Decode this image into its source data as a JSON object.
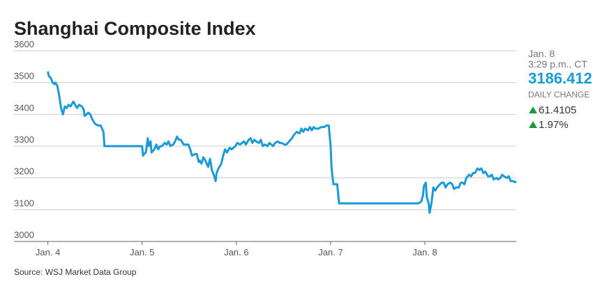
{
  "chart_data": {
    "type": "line",
    "title": "Shanghai Composite Index",
    "source": "Source: WSJ Market Data Group",
    "color": "#1a9ad6",
    "grid": true,
    "xlim": [
      -0.36,
      4.97
    ],
    "xticks": [
      {
        "value": 0,
        "label": "Jan. 4"
      },
      {
        "value": 1,
        "label": "Jan. 5"
      },
      {
        "value": 2,
        "label": "Jan. 6"
      },
      {
        "value": 3,
        "label": "Jan. 7"
      },
      {
        "value": 4,
        "label": "Jan. 8"
      }
    ],
    "ylim": [
      3000,
      3600
    ],
    "yticks": [
      3000,
      3100,
      3200,
      3300,
      3400,
      3500,
      3600
    ],
    "x": [
      0,
      0.01,
      0.03,
      0.05,
      0.07,
      0.08,
      0.1,
      0.12,
      0.14,
      0.16,
      0.18,
      0.2,
      0.22,
      0.24,
      0.27,
      0.29,
      0.31,
      0.33,
      0.36,
      0.38,
      0.39,
      0.41,
      0.43,
      0.45,
      0.47,
      0.5,
      0.53,
      0.56,
      0.59,
      0.6,
      1.0,
      1.01,
      1.02,
      1.04,
      1.06,
      1.07,
      1.09,
      1.1,
      1.13,
      1.15,
      1.17,
      1.19,
      1.21,
      1.24,
      1.26,
      1.28,
      1.3,
      1.33,
      1.35,
      1.37,
      1.39,
      1.41,
      1.44,
      1.46,
      1.49,
      1.51,
      1.53,
      1.56,
      1.58,
      1.6,
      1.61,
      1.63,
      1.65,
      1.67,
      1.7,
      1.72,
      1.74,
      1.76,
      1.78,
      1.79,
      1.81,
      1.84,
      1.86,
      1.88,
      1.9,
      1.93,
      1.95,
      1.97,
      1.99,
      2.01,
      2.04,
      2.06,
      2.08,
      2.1,
      2.13,
      2.15,
      2.17,
      2.19,
      2.21,
      2.24,
      2.26,
      2.28,
      2.3,
      2.33,
      2.35,
      2.37,
      2.39,
      2.41,
      2.44,
      2.46,
      2.48,
      2.51,
      2.53,
      2.56,
      2.59,
      2.61,
      2.64,
      2.67,
      2.69,
      2.71,
      2.73,
      2.76,
      2.78,
      2.8,
      2.82,
      2.84,
      2.87,
      2.9,
      2.93,
      2.96,
      2.98,
      3.0,
      3.01,
      3.03,
      3.07,
      3.09,
      3.93,
      3.96,
      3.98,
      3.99,
      4.01,
      4.02,
      4.04,
      4.05,
      4.07,
      4.09,
      4.11,
      4.13,
      4.16,
      4.18,
      4.2,
      4.22,
      4.24,
      4.27,
      4.29,
      4.31,
      4.33,
      4.36,
      4.38,
      4.4,
      4.42,
      4.44,
      4.47,
      4.49,
      4.51,
      4.53,
      4.56,
      4.58,
      4.6,
      4.62,
      4.64,
      4.67,
      4.69,
      4.71,
      4.73,
      4.76,
      4.78,
      4.8,
      4.82,
      4.84,
      4.87,
      4.89,
      4.91,
      4.93,
      4.97
    ],
    "values": [
      3535,
      3520,
      3515,
      3500,
      3495,
      3500,
      3490,
      3460,
      3420,
      3400,
      3425,
      3420,
      3430,
      3425,
      3440,
      3430,
      3420,
      3430,
      3425,
      3415,
      3395,
      3400,
      3405,
      3400,
      3385,
      3370,
      3365,
      3365,
      3345,
      3300,
      3300,
      3270,
      3275,
      3280,
      3325,
      3300,
      3315,
      3280,
      3290,
      3305,
      3290,
      3300,
      3300,
      3310,
      3305,
      3315,
      3300,
      3305,
      3315,
      3330,
      3320,
      3320,
      3305,
      3305,
      3305,
      3290,
      3270,
      3275,
      3275,
      3250,
      3255,
      3245,
      3265,
      3255,
      3235,
      3260,
      3225,
      3210,
      3190,
      3215,
      3230,
      3245,
      3270,
      3290,
      3280,
      3295,
      3290,
      3295,
      3300,
      3310,
      3305,
      3310,
      3315,
      3305,
      3320,
      3325,
      3310,
      3320,
      3315,
      3310,
      3320,
      3300,
      3305,
      3300,
      3310,
      3305,
      3300,
      3310,
      3315,
      3310,
      3310,
      3305,
      3305,
      3315,
      3325,
      3335,
      3345,
      3340,
      3355,
      3345,
      3355,
      3350,
      3360,
      3350,
      3360,
      3355,
      3355,
      3360,
      3360,
      3365,
      3365,
      3300,
      3230,
      3180,
      3180,
      3120,
      3120,
      3125,
      3145,
      3175,
      3185,
      3140,
      3120,
      3090,
      3120,
      3170,
      3160,
      3170,
      3180,
      3185,
      3185,
      3170,
      3180,
      3185,
      3180,
      3165,
      3170,
      3170,
      3185,
      3185,
      3180,
      3200,
      3210,
      3205,
      3215,
      3215,
      3230,
      3225,
      3230,
      3215,
      3220,
      3205,
      3205,
      3210,
      3195,
      3200,
      3195,
      3200,
      3210,
      3205,
      3200,
      3205,
      3190,
      3190,
      3186
    ]
  },
  "quote": {
    "date": "Jan. 8",
    "time": "3:29 p.m., CT",
    "price": "3186.412",
    "label": "DAILY CHANGE",
    "change": "61.4105",
    "change_pct": "1.97%"
  }
}
